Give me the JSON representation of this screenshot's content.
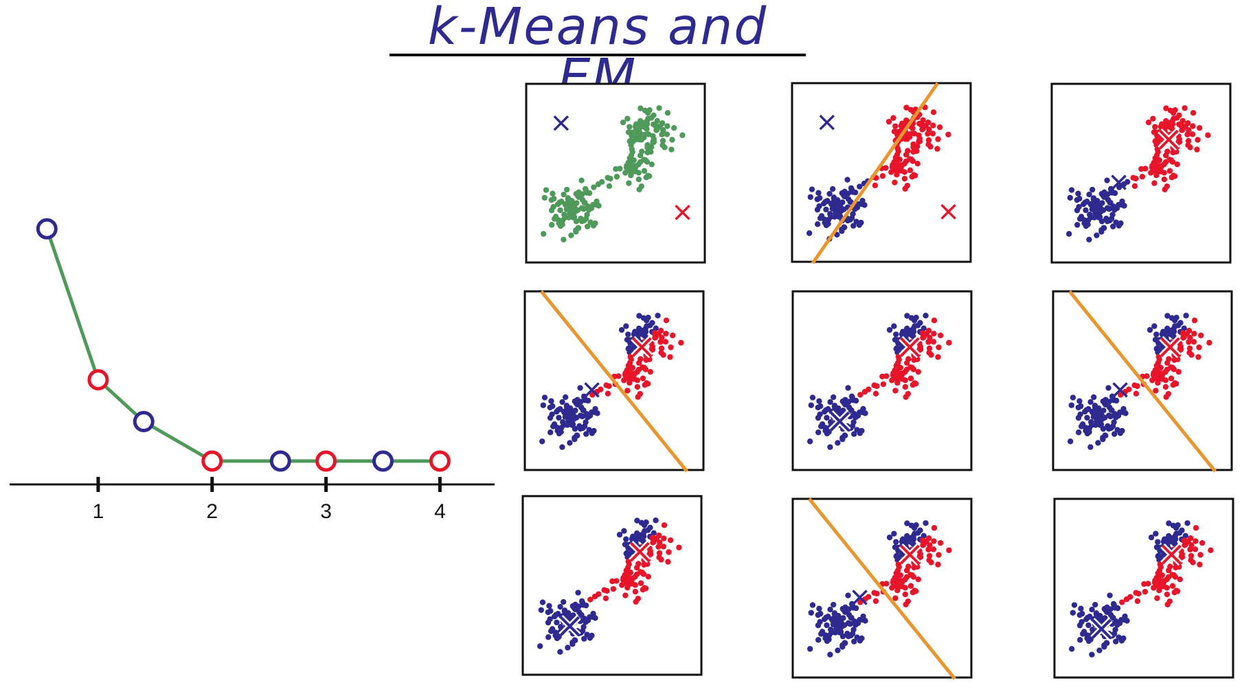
{
  "title": "k-Means and EM",
  "colors": {
    "blue": "#2e2a8f",
    "red": "#e8152a",
    "green": "#4f9a5a",
    "orange": "#e8962d",
    "frame": "#111111"
  },
  "chart_data": {
    "type": "line",
    "xticks": [
      "1",
      "2",
      "3",
      "4"
    ],
    "tick_positions": [
      1,
      2,
      3,
      4
    ],
    "points": [
      {
        "x": 0.55,
        "y": 1.0,
        "marker": "blue"
      },
      {
        "x": 1.0,
        "y": 0.35,
        "marker": "red"
      },
      {
        "x": 1.4,
        "y": 0.17,
        "marker": "blue"
      },
      {
        "x": 2.0,
        "y": 0.0,
        "marker": "red"
      },
      {
        "x": 2.6,
        "y": 0.0,
        "marker": "blue"
      },
      {
        "x": 3.0,
        "y": 0.0,
        "marker": "red"
      },
      {
        "x": 3.5,
        "y": 0.0,
        "marker": "blue"
      },
      {
        "x": 4.0,
        "y": 0.0,
        "marker": "red"
      }
    ],
    "xlim": [
      0.5,
      4.1
    ],
    "ylim": [
      0,
      1
    ]
  },
  "panels": [
    {
      "id": "init",
      "coloring": "green",
      "line": false,
      "blue_center": "initial",
      "red_center": "initial"
    },
    {
      "id": "assign-1",
      "coloring": "split-1",
      "line": "rising",
      "blue_center": "initial",
      "red_center": "initial"
    },
    {
      "id": "update-1",
      "coloring": "split-1",
      "line": false,
      "blue_center": "middle",
      "red_center": "top"
    },
    {
      "id": "assign-2",
      "coloring": "final",
      "line": "falling",
      "blue_center": "middle",
      "red_center": "top"
    },
    {
      "id": "update-2",
      "coloring": "final",
      "line": false,
      "blue_center": "bottom",
      "red_center": "top"
    },
    {
      "id": "assign-3",
      "coloring": "final",
      "line": "falling",
      "blue_center": "middle",
      "red_center": "top"
    },
    {
      "id": "update-3",
      "coloring": "final",
      "line": false,
      "blue_center": "bottom",
      "red_center": "top"
    },
    {
      "id": "assign-4",
      "coloring": "final",
      "line": "falling",
      "blue_center": "middle",
      "red_center": "top"
    },
    {
      "id": "update-4",
      "coloring": "final",
      "line": false,
      "blue_center": "bottom",
      "red_center": "top"
    }
  ]
}
